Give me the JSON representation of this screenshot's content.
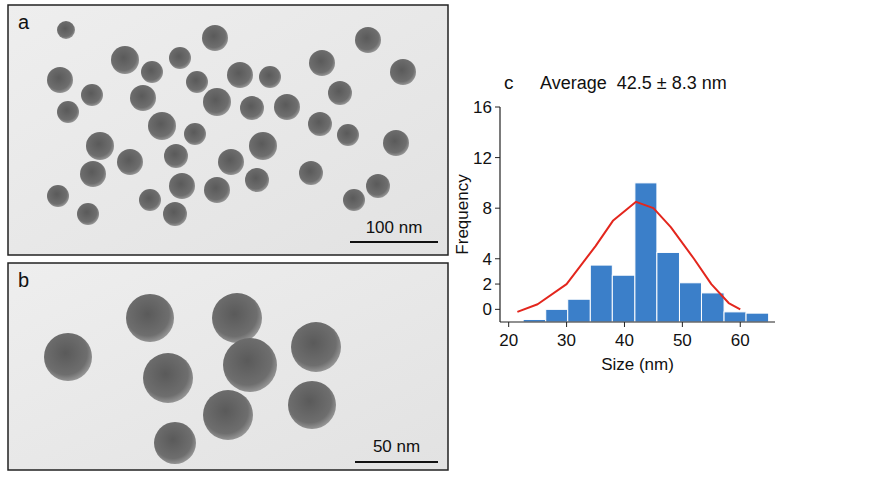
{
  "images": [
    {
      "letter": "a",
      "scale_bar": "100 nm"
    },
    {
      "letter": "b",
      "scale_bar": "50 nm"
    }
  ],
  "chart_data": {
    "type": "histogram",
    "panel_label": "c",
    "annotations": [
      "Average  42.5 ± 8.3 nm"
    ],
    "x_label": "Size (nm)",
    "y_label": "Frequency",
    "bins": [
      22.5,
      26.4,
      30.2,
      34.1,
      37.9,
      41.8,
      45.6,
      49.5,
      53.3,
      57.2,
      61.0,
      64.9
    ],
    "values": [
      -0.8,
      0,
      0.8,
      3.5,
      2.7,
      10,
      4.5,
      2.1,
      1.3,
      -0.2,
      -0.3
    ],
    "color": "#3b7fc9",
    "series": [
      {
        "type": "line",
        "color": "#e3261d",
        "x": [
          21.5,
          25,
          30,
          35,
          38,
          42,
          45,
          48,
          52,
          55,
          58,
          60
        ],
        "values": [
          -0.2,
          0.4,
          2,
          5,
          7,
          8.5,
          8,
          6.5,
          4,
          2,
          0.5,
          0
        ]
      }
    ],
    "xlim": [
      18.5,
      66
    ],
    "ylim": [
      -1,
      16
    ],
    "xticks": [
      20,
      30,
      40,
      50,
      60
    ],
    "yticks": [
      0,
      2,
      4,
      8,
      12,
      16
    ],
    "grid": false
  }
}
